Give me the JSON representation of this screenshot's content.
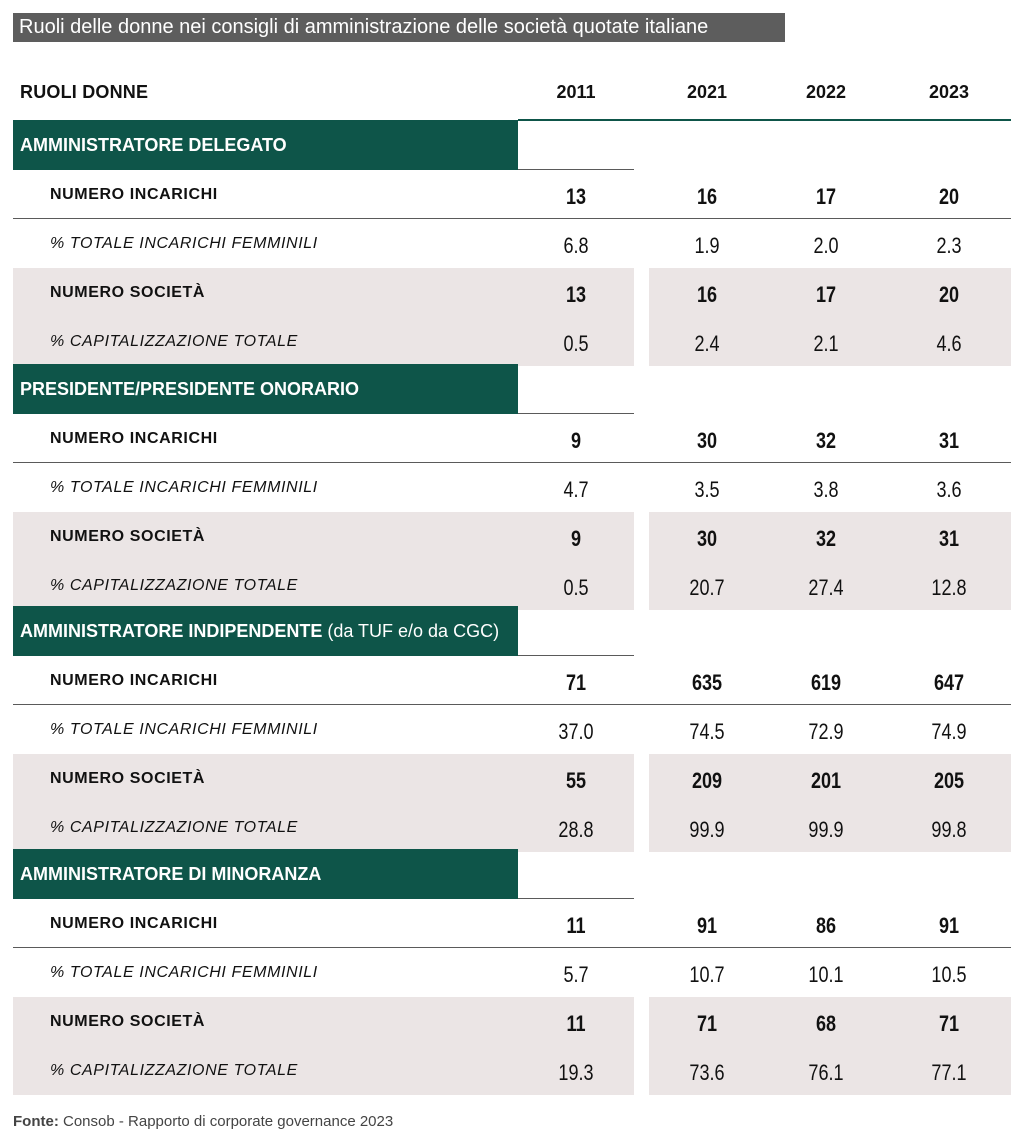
{
  "title": "Ruoli delle donne nei consigli di amministrazione delle società quotate italiane",
  "chart_data": {
    "type": "table",
    "header_label": "RUOLI DONNE",
    "columns": [
      "2011",
      "2021",
      "2022",
      "2023"
    ],
    "sections": [
      {
        "name": "AMMINISTRATORE DELEGATO",
        "note": "",
        "rows": [
          {
            "label": "NUMERO INCARICHI",
            "values": [
              "13",
              "16",
              "17",
              "20"
            ]
          },
          {
            "label": "% TOTALE INCARICHI FEMMINILI",
            "values": [
              "6.8",
              "1.9",
              "2.0",
              "2.3"
            ]
          },
          {
            "label": "NUMERO SOCIETÀ",
            "values": [
              "13",
              "16",
              "17",
              "20"
            ]
          },
          {
            "label": "% CAPITALIZZAZIONE TOTALE",
            "values": [
              "0.5",
              "2.4",
              "2.1",
              "4.6"
            ]
          }
        ]
      },
      {
        "name": "PRESIDENTE/PRESIDENTE ONORARIO",
        "note": "",
        "rows": [
          {
            "label": "NUMERO INCARICHI",
            "values": [
              "9",
              "30",
              "32",
              "31"
            ]
          },
          {
            "label": "% TOTALE INCARICHI FEMMINILI",
            "values": [
              "4.7",
              "3.5",
              "3.8",
              "3.6"
            ]
          },
          {
            "label": "NUMERO SOCIETÀ",
            "values": [
              "9",
              "30",
              "32",
              "31"
            ]
          },
          {
            "label": "% CAPITALIZZAZIONE TOTALE",
            "values": [
              "0.5",
              "20.7",
              "27.4",
              "12.8"
            ]
          }
        ]
      },
      {
        "name": "AMMINISTRATORE INDIPENDENTE",
        "note": " (da TUF e/o da CGC)",
        "rows": [
          {
            "label": "NUMERO INCARICHI",
            "values": [
              "71",
              "635",
              "619",
              "647"
            ]
          },
          {
            "label": "% TOTALE INCARICHI FEMMINILI",
            "values": [
              "37.0",
              "74.5",
              "72.9",
              "74.9"
            ]
          },
          {
            "label": "NUMERO SOCIETÀ",
            "values": [
              "55",
              "209",
              "201",
              "205"
            ]
          },
          {
            "label": "% CAPITALIZZAZIONE TOTALE",
            "values": [
              "28.8",
              "99.9",
              "99.9",
              "99.8"
            ]
          }
        ]
      },
      {
        "name": "AMMINISTRATORE DI MINORANZA",
        "note": "",
        "rows": [
          {
            "label": "NUMERO INCARICHI",
            "values": [
              "11",
              "91",
              "86",
              "91"
            ]
          },
          {
            "label": "% TOTALE INCARICHI FEMMINILI",
            "values": [
              "5.7",
              "10.7",
              "10.1",
              "10.5"
            ]
          },
          {
            "label": "NUMERO SOCIETÀ",
            "values": [
              "11",
              "71",
              "68",
              "71"
            ]
          },
          {
            "label": "% CAPITALIZZAZIONE TOTALE",
            "values": [
              "19.3",
              "73.6",
              "76.1",
              "77.1"
            ]
          }
        ]
      }
    ]
  },
  "source": {
    "label": "Fonte:",
    "text": " Consob - Rapporto di corporate governance 2023"
  },
  "colors": {
    "section_header": "#0e5549",
    "row_shade": "#ebe5e5",
    "title_bg": "#5d5d5d"
  }
}
